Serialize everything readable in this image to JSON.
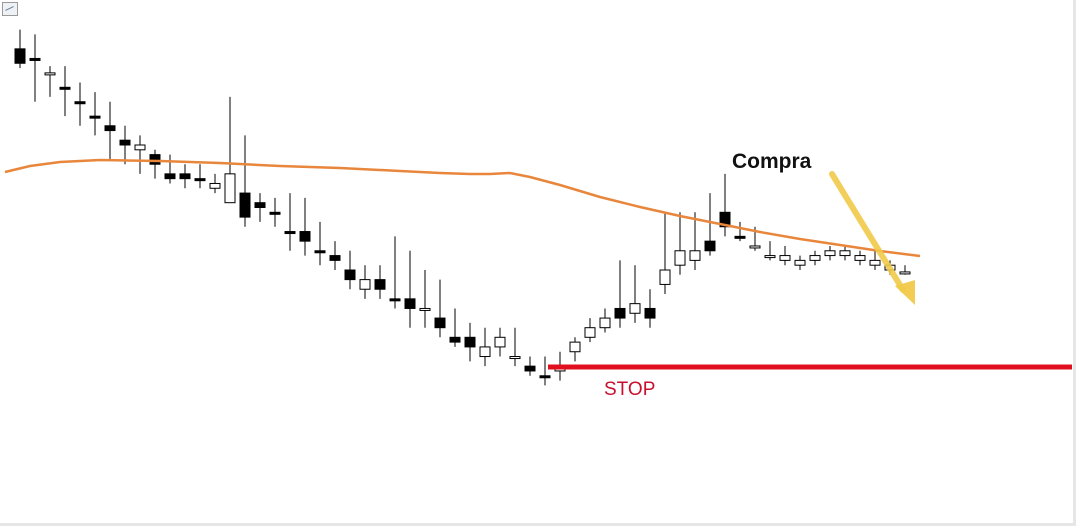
{
  "chart_data": {
    "type": "candlestick",
    "y_range": [
      0,
      520
    ],
    "candles": [
      [
        30,
        45,
        10,
        50,
        "bear"
      ],
      [
        40,
        40,
        15,
        85,
        "bear"
      ],
      [
        55,
        55,
        48,
        80,
        "bull"
      ],
      [
        70,
        70,
        48,
        100,
        "bear"
      ],
      [
        85,
        85,
        65,
        110,
        "bear"
      ],
      [
        100,
        100,
        75,
        120,
        "bear"
      ],
      [
        115,
        110,
        85,
        145,
        "bear"
      ],
      [
        130,
        125,
        110,
        150,
        "bear"
      ],
      [
        135,
        130,
        120,
        160,
        "bull"
      ],
      [
        150,
        140,
        135,
        165,
        "bear"
      ],
      [
        165,
        160,
        140,
        170,
        "bear"
      ],
      [
        160,
        165,
        150,
        175,
        "bear"
      ],
      [
        165,
        165,
        150,
        175,
        "bear"
      ],
      [
        175,
        170,
        160,
        180,
        "bull"
      ],
      [
        190,
        160,
        80,
        190,
        "bull"
      ],
      [
        205,
        180,
        120,
        215,
        "bear"
      ],
      [
        190,
        195,
        180,
        210,
        "bear"
      ],
      [
        200,
        200,
        185,
        215,
        "bear"
      ],
      [
        220,
        220,
        180,
        240,
        "bear"
      ],
      [
        220,
        230,
        185,
        245,
        "bear"
      ],
      [
        240,
        240,
        210,
        255,
        "bear"
      ],
      [
        245,
        250,
        230,
        260,
        "bear"
      ],
      [
        260,
        270,
        240,
        280,
        "bear"
      ],
      [
        270,
        280,
        255,
        290,
        "bull"
      ],
      [
        270,
        280,
        255,
        290,
        "bear"
      ],
      [
        290,
        290,
        225,
        300,
        "bear"
      ],
      [
        290,
        300,
        240,
        320,
        "bear"
      ],
      [
        300,
        300,
        260,
        320,
        "bull"
      ],
      [
        310,
        320,
        270,
        330,
        "bear"
      ],
      [
        330,
        335,
        300,
        340,
        "bear"
      ],
      [
        330,
        340,
        315,
        355,
        "bear"
      ],
      [
        340,
        350,
        320,
        360,
        "bull"
      ],
      [
        330,
        340,
        320,
        350,
        "bull"
      ],
      [
        350,
        350,
        320,
        360,
        "bull"
      ],
      [
        360,
        365,
        350,
        370,
        "bear"
      ],
      [
        370,
        370,
        350,
        380,
        "bear"
      ],
      [
        360,
        365,
        345,
        375,
        "bull"
      ],
      [
        335,
        345,
        330,
        355,
        "bull"
      ],
      [
        320,
        330,
        310,
        335,
        "bull"
      ],
      [
        310,
        320,
        300,
        325,
        "bull"
      ],
      [
        300,
        310,
        250,
        320,
        "bear"
      ],
      [
        295,
        305,
        255,
        315,
        "bull"
      ],
      [
        300,
        310,
        280,
        320,
        "bear"
      ],
      [
        260,
        275,
        200,
        285,
        "bull"
      ],
      [
        240,
        255,
        200,
        265,
        "bull"
      ],
      [
        240,
        250,
        200,
        260,
        "bull"
      ],
      [
        230,
        240,
        180,
        245,
        "bear"
      ],
      [
        200,
        215,
        160,
        225,
        "bear"
      ],
      [
        225,
        225,
        210,
        230,
        "bear"
      ],
      [
        235,
        235,
        215,
        240,
        "bull"
      ],
      [
        245,
        245,
        230,
        250,
        "bull"
      ],
      [
        245,
        250,
        235,
        255,
        "bull"
      ],
      [
        250,
        255,
        245,
        260,
        "bull"
      ],
      [
        245,
        250,
        240,
        255,
        "bull"
      ],
      [
        240,
        245,
        235,
        250,
        "bull"
      ],
      [
        240,
        245,
        235,
        250,
        "bull"
      ],
      [
        245,
        250,
        240,
        255,
        "bull"
      ],
      [
        250,
        255,
        240,
        260,
        "bull"
      ],
      [
        255,
        260,
        250,
        265,
        "bull"
      ],
      [
        262,
        262,
        255,
        265,
        "bull"
      ]
    ]
  }
}
